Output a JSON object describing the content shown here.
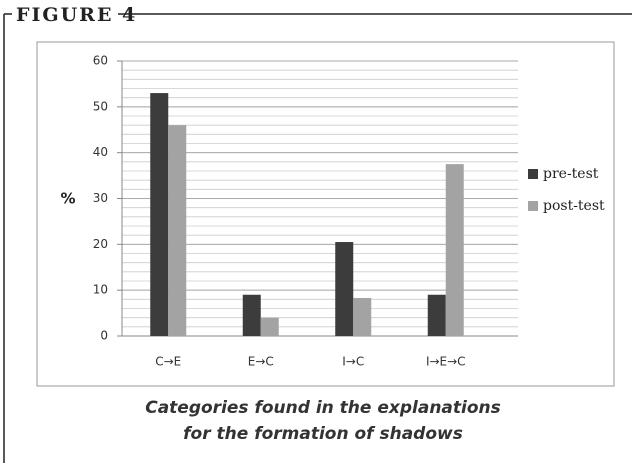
{
  "figure_label": "FIGURE 4",
  "caption": [
    "Categories found in the explanations",
    "for the formation of shadows"
  ],
  "chart_data": {
    "type": "bar",
    "y_label": "%",
    "categories": [
      "C→E",
      "E→C",
      "I→C",
      "I→E→C"
    ],
    "series": [
      {
        "name": "pre-test",
        "color": "#3c3c3c",
        "values": [
          53,
          9,
          20.5,
          9
        ]
      },
      {
        "name": "post-test",
        "color": "#a3a3a3",
        "values": [
          46,
          4,
          8.3,
          37.5
        ]
      }
    ],
    "ylim": [
      0,
      60
    ],
    "yticks": [
      0,
      10,
      20,
      30,
      40,
      50,
      60
    ],
    "grid": true,
    "grid_minor_step": 2,
    "legend": "right"
  }
}
